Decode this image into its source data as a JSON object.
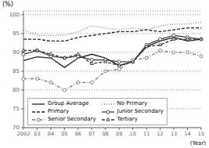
{
  "chart_data": {
    "type": "line",
    "xlabel": "(Year)",
    "ylabel": "(%)",
    "categories": [
      "2002",
      "03",
      "04",
      "05",
      "06",
      "07",
      "08",
      "09",
      "10",
      "11",
      "12",
      "13",
      "14",
      "15"
    ],
    "series": [
      {
        "name": "Group Average",
        "color": "#222222",
        "line_style": "solid",
        "values": [
          87.8,
          88.8,
          88.5,
          86.0,
          88.5,
          89.5,
          88.5,
          86.5,
          87.5,
          91.5,
          93.0,
          94.0,
          93.0,
          93.5
        ]
      },
      {
        "name": "No Primary",
        "color": "#888888",
        "line_style": "dotted",
        "values": [
          96.0,
          94.5,
          94.5,
          94.5,
          95.5,
          97.0,
          96.5,
          96.0,
          96.5,
          96.0,
          97.0,
          97.5,
          97.5,
          98.0
        ]
      },
      {
        "name": "Primary",
        "color": "#222222",
        "line_style": "dashed",
        "values": [
          93.5,
          93.5,
          93.0,
          93.0,
          94.0,
          94.5,
          95.0,
          95.5,
          95.5,
          96.0,
          95.5,
          96.0,
          96.5,
          96.5
        ]
      },
      {
        "name": "Junior Secondary",
        "color": "#444444",
        "line_style": "solid",
        "marker": "circle",
        "values": [
          89.5,
          90.5,
          89.0,
          88.5,
          89.0,
          88.0,
          88.0,
          87.5,
          87.5,
          92.0,
          93.5,
          94.5,
          94.0,
          93.5
        ]
      },
      {
        "name": "Senior Secondary",
        "color": "#777777",
        "line_style": "dashdot",
        "marker": "circle",
        "values": [
          83.0,
          83.0,
          82.0,
          80.0,
          82.0,
          82.0,
          85.0,
          85.5,
          88.0,
          88.5,
          90.5,
          90.0,
          90.0,
          89.0
        ]
      },
      {
        "name": "Tertiary",
        "color": "#333333",
        "line_style": "dashed",
        "marker": "triangle",
        "values": [
          90.5,
          90.5,
          89.5,
          88.5,
          89.5,
          87.0,
          87.5,
          86.5,
          87.5,
          91.5,
          92.0,
          93.5,
          93.5,
          93.5
        ]
      }
    ],
    "ylim": [
      70,
      101
    ],
    "yticks": [
      70,
      75,
      80,
      85,
      90,
      95,
      100
    ],
    "grid": true,
    "legend": "lower left"
  }
}
